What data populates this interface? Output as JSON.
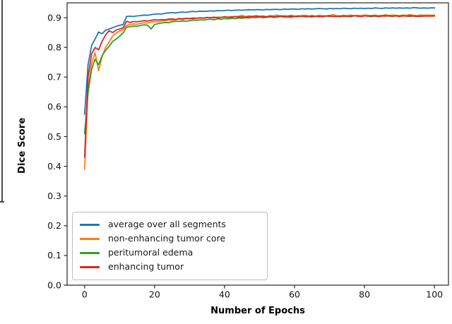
{
  "chart_data": {
    "type": "line",
    "title": "",
    "xlabel": "Number of Epochs",
    "ylabel": "Dice Score",
    "xlim": [
      -5,
      104
    ],
    "ylim": [
      0,
      0.95
    ],
    "grid": false,
    "legend_position": "lower-left",
    "x_ticks": [
      0,
      20,
      40,
      60,
      80,
      100
    ],
    "x_tick_labels": [
      "0",
      "20",
      "40",
      "60",
      "80",
      "100"
    ],
    "y_ticks": [
      0.0,
      0.1,
      0.2,
      0.3,
      0.4,
      0.5,
      0.6,
      0.7,
      0.8,
      0.9
    ],
    "y_tick_labels": [
      "0.0",
      "0.1",
      "0.2",
      "0.3",
      "0.4",
      "0.5",
      "0.6",
      "0.7",
      "0.8",
      "0.9"
    ],
    "x": [
      0,
      1,
      2,
      3,
      4,
      5,
      6,
      7,
      8,
      9,
      10,
      11,
      12,
      13,
      14,
      15,
      16,
      17,
      18,
      19,
      20,
      21,
      22,
      23,
      24,
      25,
      26,
      27,
      28,
      29,
      30,
      31,
      32,
      33,
      34,
      35,
      36,
      37,
      38,
      39,
      40,
      41,
      42,
      43,
      44,
      45,
      46,
      47,
      48,
      49,
      50,
      51,
      52,
      53,
      54,
      55,
      56,
      57,
      58,
      59,
      60,
      61,
      62,
      63,
      64,
      65,
      66,
      67,
      68,
      69,
      70,
      71,
      72,
      73,
      74,
      75,
      76,
      77,
      78,
      79,
      80,
      81,
      82,
      83,
      84,
      85,
      86,
      87,
      88,
      89,
      90,
      91,
      92,
      93,
      94,
      95,
      96,
      97,
      98,
      99,
      100
    ],
    "series": [
      {
        "name": "average over all segments",
        "color": "#1f77b4",
        "values": [
          0.575,
          0.742,
          0.806,
          0.828,
          0.852,
          0.846,
          0.858,
          0.862,
          0.866,
          0.871,
          0.874,
          0.877,
          0.904,
          0.905,
          0.904,
          0.906,
          0.907,
          0.909,
          0.908,
          0.91,
          0.912,
          0.913,
          0.912,
          0.915,
          0.916,
          0.917,
          0.916,
          0.918,
          0.919,
          0.918,
          0.92,
          0.921,
          0.92,
          0.922,
          0.921,
          0.922,
          0.923,
          0.922,
          0.924,
          0.923,
          0.924,
          0.925,
          0.924,
          0.925,
          0.926,
          0.925,
          0.926,
          0.927,
          0.926,
          0.927,
          0.927,
          0.926,
          0.928,
          0.927,
          0.928,
          0.928,
          0.927,
          0.929,
          0.928,
          0.929,
          0.929,
          0.928,
          0.93,
          0.929,
          0.93,
          0.929,
          0.93,
          0.931,
          0.93,
          0.929,
          0.931,
          0.93,
          0.931,
          0.93,
          0.932,
          0.931,
          0.93,
          0.932,
          0.931,
          0.932,
          0.931,
          0.932,
          0.931,
          0.933,
          0.932,
          0.931,
          0.933,
          0.932,
          0.933,
          0.932,
          0.933,
          0.932,
          0.933,
          0.932,
          0.934,
          0.933,
          0.932,
          0.933,
          0.932,
          0.933,
          0.933
        ]
      },
      {
        "name": "non-enhancing tumor core",
        "color": "#ff7f0e",
        "values": [
          0.39,
          0.662,
          0.745,
          0.782,
          0.722,
          0.768,
          0.8,
          0.818,
          0.838,
          0.848,
          0.855,
          0.86,
          0.874,
          0.877,
          0.879,
          0.878,
          0.881,
          0.883,
          0.882,
          0.885,
          0.887,
          0.886,
          0.889,
          0.89,
          0.892,
          0.891,
          0.893,
          0.895,
          0.894,
          0.896,
          0.897,
          0.896,
          0.898,
          0.899,
          0.898,
          0.9,
          0.901,
          0.899,
          0.902,
          0.901,
          0.903,
          0.902,
          0.904,
          0.903,
          0.905,
          0.908,
          0.904,
          0.906,
          0.905,
          0.907,
          0.905,
          0.906,
          0.904,
          0.907,
          0.906,
          0.909,
          0.905,
          0.907,
          0.906,
          0.908,
          0.906,
          0.905,
          0.907,
          0.908,
          0.906,
          0.907,
          0.905,
          0.908,
          0.907,
          0.906,
          0.908,
          0.91,
          0.907,
          0.906,
          0.908,
          0.907,
          0.909,
          0.906,
          0.908,
          0.907,
          0.909,
          0.908,
          0.906,
          0.909,
          0.907,
          0.908,
          0.91,
          0.907,
          0.909,
          0.908,
          0.907,
          0.909,
          0.908,
          0.91,
          0.908,
          0.907,
          0.909,
          0.908,
          0.909,
          0.908,
          0.909
        ]
      },
      {
        "name": "peritumoral edema",
        "color": "#2ca02c",
        "values": [
          0.51,
          0.648,
          0.726,
          0.76,
          0.742,
          0.772,
          0.79,
          0.803,
          0.82,
          0.828,
          0.838,
          0.848,
          0.868,
          0.87,
          0.872,
          0.871,
          0.874,
          0.876,
          0.875,
          0.862,
          0.877,
          0.88,
          0.882,
          0.884,
          0.883,
          0.886,
          0.888,
          0.887,
          0.889,
          0.888,
          0.89,
          0.892,
          0.891,
          0.893,
          0.892,
          0.894,
          0.895,
          0.893,
          0.896,
          0.895,
          0.897,
          0.896,
          0.898,
          0.897,
          0.899,
          0.898,
          0.9,
          0.899,
          0.901,
          0.9,
          0.902,
          0.9,
          0.901,
          0.903,
          0.901,
          0.902,
          0.904,
          0.902,
          0.903,
          0.901,
          0.904,
          0.903,
          0.905,
          0.903,
          0.904,
          0.902,
          0.905,
          0.903,
          0.904,
          0.906,
          0.904,
          0.905,
          0.903,
          0.906,
          0.904,
          0.905,
          0.903,
          0.906,
          0.905,
          0.904,
          0.906,
          0.905,
          0.903,
          0.906,
          0.904,
          0.905,
          0.907,
          0.905,
          0.904,
          0.906,
          0.905,
          0.907,
          0.905,
          0.904,
          0.906,
          0.905,
          0.904,
          0.906,
          0.905,
          0.906,
          0.905
        ]
      },
      {
        "name": "enhancing tumor",
        "color": "#d62728",
        "values": [
          0.43,
          0.7,
          0.778,
          0.8,
          0.792,
          0.82,
          0.842,
          0.856,
          0.85,
          0.858,
          0.862,
          0.866,
          0.888,
          0.884,
          0.887,
          0.886,
          0.888,
          0.89,
          0.889,
          0.891,
          0.893,
          0.892,
          0.894,
          0.893,
          0.895,
          0.896,
          0.894,
          0.897,
          0.896,
          0.898,
          0.897,
          0.899,
          0.898,
          0.9,
          0.899,
          0.901,
          0.9,
          0.902,
          0.9,
          0.901,
          0.903,
          0.901,
          0.902,
          0.904,
          0.902,
          0.903,
          0.901,
          0.904,
          0.903,
          0.905,
          0.903,
          0.904,
          0.902,
          0.905,
          0.903,
          0.904,
          0.906,
          0.904,
          0.903,
          0.905,
          0.904,
          0.906,
          0.904,
          0.905,
          0.903,
          0.906,
          0.904,
          0.905,
          0.903,
          0.905,
          0.906,
          0.904,
          0.905,
          0.903,
          0.906,
          0.904,
          0.905,
          0.907,
          0.905,
          0.904,
          0.906,
          0.905,
          0.907,
          0.905,
          0.904,
          0.906,
          0.905,
          0.907,
          0.905,
          0.906,
          0.904,
          0.906,
          0.905,
          0.907,
          0.905,
          0.904,
          0.906,
          0.905,
          0.906,
          0.905,
          0.906
        ]
      }
    ]
  }
}
